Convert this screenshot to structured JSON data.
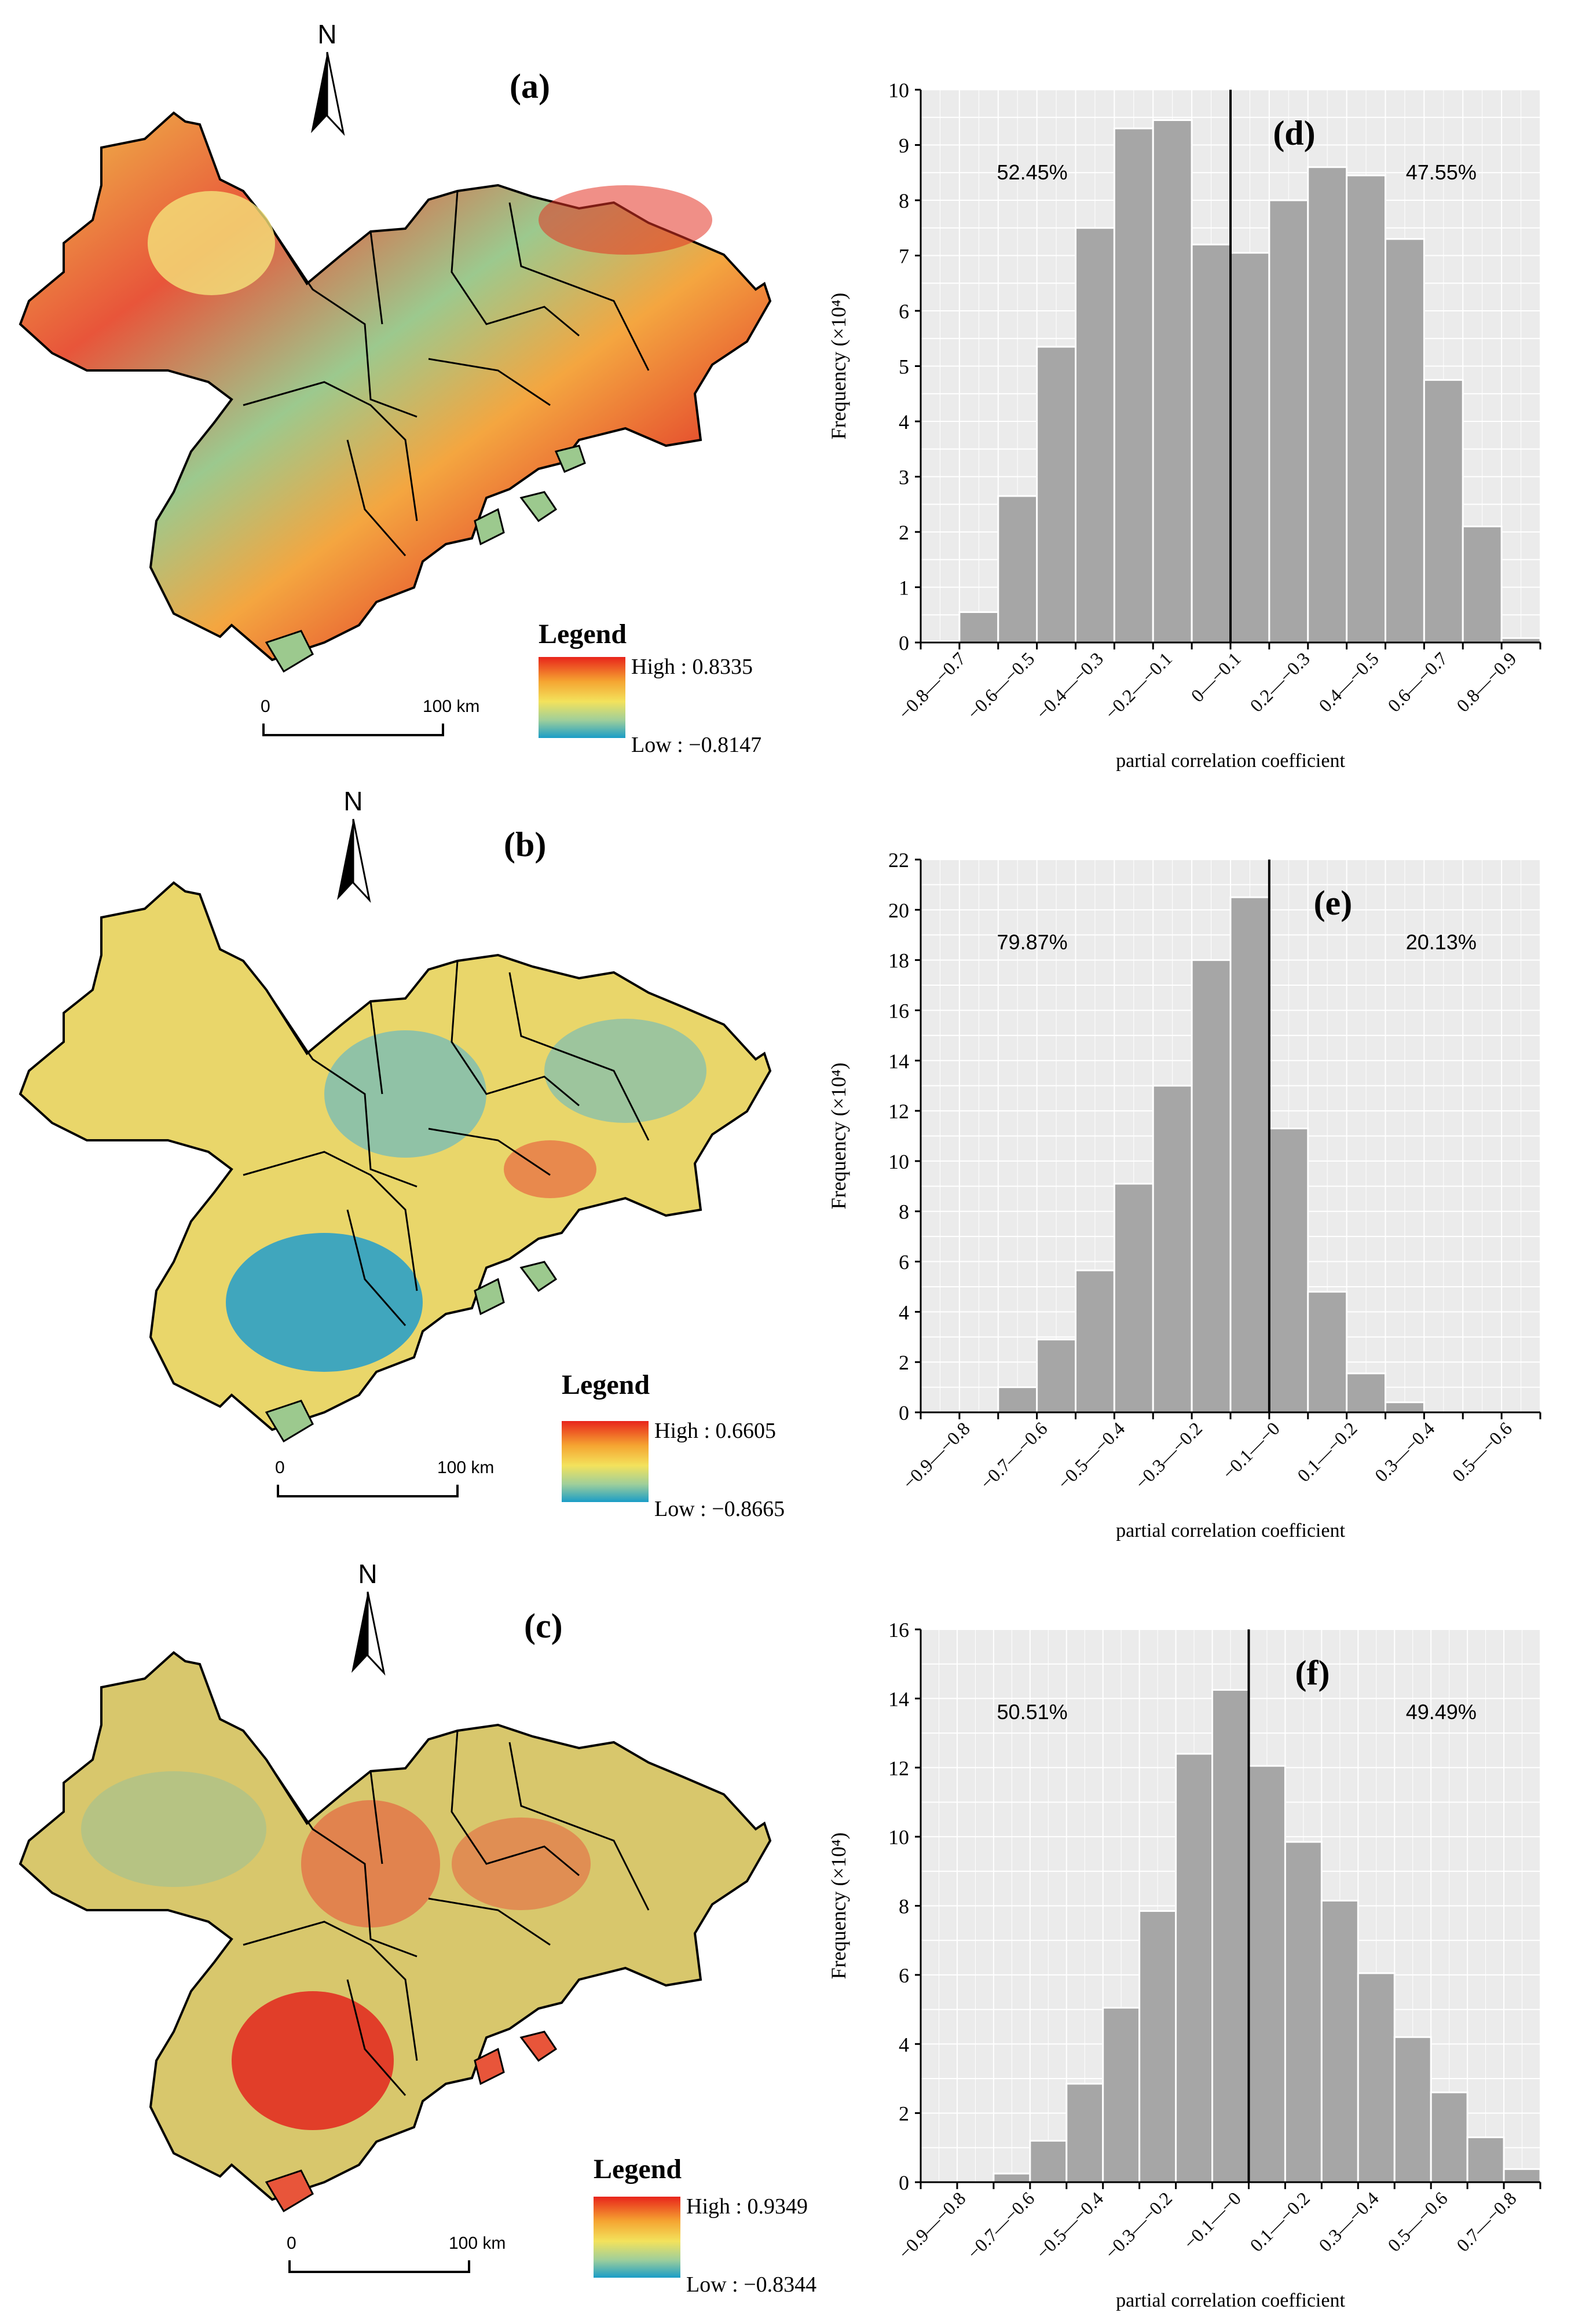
{
  "maps": [
    {
      "label": "(a)",
      "north": "N",
      "legend_title": "Legend",
      "legend_high": "High : 0.8335",
      "legend_low": "Low : −0.8147",
      "scale_zero": "0",
      "scale_distance": "100 km"
    },
    {
      "label": "(b)",
      "north": "N",
      "legend_title": "Legend",
      "legend_high": "High : 0.6605",
      "legend_low": "Low : −0.8665",
      "scale_zero": "0",
      "scale_distance": "100 km"
    },
    {
      "label": "(c)",
      "north": "N",
      "legend_title": "Legend",
      "legend_high": "High : 0.9349",
      "legend_low": "Low : −0.8344",
      "scale_zero": "0",
      "scale_distance": "100 km"
    }
  ],
  "chart_data": [
    {
      "type": "bar",
      "panel_label": "(d)",
      "ylabel": "Frequency (×10⁴)",
      "xlabel": "partial correlation coefficient",
      "ylim": [
        0,
        10
      ],
      "yticks": [
        0,
        1,
        2,
        3,
        4,
        5,
        6,
        7,
        8,
        9,
        10
      ],
      "values": [
        0.02,
        0.55,
        2.65,
        5.35,
        7.5,
        9.3,
        9.45,
        7.2,
        7.05,
        8.0,
        8.6,
        8.45,
        7.3,
        4.75,
        2.1,
        0.08
      ],
      "tick_labels": [
        "−0.8—−0.7",
        "−0.6—−0.5",
        "−0.4—−0.3",
        "−0.2—−0.1",
        "0—−0.1",
        "0.2—−0.3",
        "0.4—−0.5",
        "0.6—−0.7",
        "0.8—−0.9"
      ],
      "zero_line_index": 8,
      "left_percent": "52.45%",
      "right_percent": "47.55%",
      "grid": true
    },
    {
      "type": "bar",
      "panel_label": "(e)",
      "ylabel": "Frequency (×10⁴)",
      "xlabel": "partial correlation coefficient",
      "ylim": [
        0,
        22
      ],
      "yticks": [
        0,
        2,
        4,
        6,
        8,
        10,
        12,
        14,
        16,
        18,
        20,
        22
      ],
      "values": [
        0.0,
        0.0,
        1.0,
        2.9,
        5.65,
        9.1,
        13.0,
        18.0,
        20.5,
        11.3,
        4.8,
        1.55,
        0.4,
        0.0,
        0.0,
        0.0
      ],
      "tick_labels": [
        "−0.9—−0.8",
        "−0.7—−0.6",
        "−0.5—−0.4",
        "−0.3—−0.2",
        "−0.1—−0",
        "0.1—−0.2",
        "0.3—−0.4",
        "0.5—−0.6"
      ],
      "zero_line_index": 9,
      "left_percent": "79.87%",
      "right_percent": "20.13%",
      "grid": true
    },
    {
      "type": "bar",
      "panel_label": "(f)",
      "ylabel": "Frequency (×10⁴)",
      "xlabel": "partial correlation coefficient",
      "ylim": [
        0,
        16
      ],
      "yticks": [
        0,
        2,
        4,
        6,
        8,
        10,
        12,
        14,
        16
      ],
      "values": [
        0.0,
        0.0,
        0.25,
        1.2,
        2.85,
        5.05,
        7.85,
        12.4,
        14.25,
        12.05,
        9.85,
        8.15,
        6.05,
        4.2,
        2.6,
        1.3,
        0.38
      ],
      "tick_labels": [
        "−0.9—−0.8",
        "−0.7—−0.6",
        "−0.5—−0.4",
        "−0.3—−0.2",
        "−0.1—−0",
        "0.1—−0.2",
        "0.3—−0.4",
        "0.5—−0.6",
        "0.7—−0.8"
      ],
      "zero_line_index": 9,
      "left_percent": "50.51%",
      "right_percent": "49.49%",
      "grid": true
    }
  ]
}
